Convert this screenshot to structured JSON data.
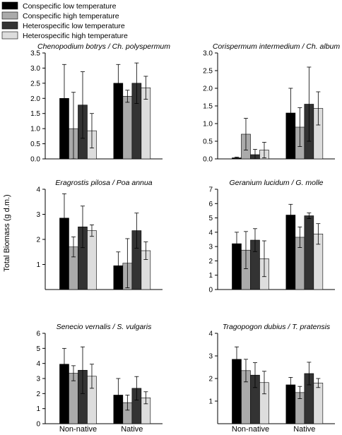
{
  "figure": {
    "ylabel": "Total Biomass (g d.m.)",
    "xcategories": [
      "Non-native",
      "Native"
    ]
  },
  "legend": {
    "placement": "top-left",
    "entries": [
      {
        "label": "Conspecific low temperature",
        "color": "#000000"
      },
      {
        "label": "Conspecific high temperature",
        "color": "#aaaaaa"
      },
      {
        "label": "Heterospecific low temperature",
        "color": "#333333"
      },
      {
        "label": "Heterospecific high temperature",
        "color": "#dddddd"
      }
    ]
  },
  "chart_data": [
    {
      "type": "bar",
      "title": "Chenopodium botrys / Ch. polyspermum",
      "categories": [
        "Non-native",
        "Native"
      ],
      "ylim": [
        0,
        3.5
      ],
      "yticks": [
        0.0,
        0.5,
        1.0,
        1.5,
        2.0,
        2.5,
        3.0,
        3.5
      ],
      "tick_decimals": 1,
      "series": [
        {
          "name": "Conspecific low temperature",
          "values": [
            2.0,
            2.5
          ],
          "errors": [
            1.12,
            0.62
          ]
        },
        {
          "name": "Conspecific high temperature",
          "values": [
            1.0,
            2.07
          ],
          "errors": [
            1.2,
            0.2
          ]
        },
        {
          "name": "Heterospecific low temperature",
          "values": [
            1.78,
            2.5
          ],
          "errors": [
            1.1,
            0.67
          ]
        },
        {
          "name": "Heterospecific high temperature",
          "values": [
            0.93,
            2.35
          ],
          "errors": [
            0.57,
            0.38
          ]
        }
      ]
    },
    {
      "type": "bar",
      "title": "Corispermum intermedium / Ch. album",
      "categories": [
        "Non-native",
        "Native"
      ],
      "ylim": [
        0,
        3.0
      ],
      "yticks": [
        0.0,
        0.5,
        1.0,
        1.5,
        2.0,
        2.5,
        3.0
      ],
      "tick_decimals": 1,
      "series": [
        {
          "name": "Conspecific low temperature",
          "values": [
            0.03,
            1.3
          ],
          "errors": [
            0.02,
            0.7
          ]
        },
        {
          "name": "Conspecific high temperature",
          "values": [
            0.7,
            0.9
          ],
          "errors": [
            0.45,
            0.55
          ]
        },
        {
          "name": "Heterospecific low temperature",
          "values": [
            0.12,
            1.55
          ],
          "errors": [
            0.15,
            1.05
          ]
        },
        {
          "name": "Heterospecific high temperature",
          "values": [
            0.25,
            1.43
          ],
          "errors": [
            0.22,
            0.47
          ]
        }
      ]
    },
    {
      "type": "bar",
      "title": "Eragrostis pilosa / Poa annua",
      "categories": [
        "Non-native",
        "Native"
      ],
      "ylim": [
        0,
        4
      ],
      "yticks": [
        1,
        2,
        3,
        4
      ],
      "tick_decimals": 0,
      "series": [
        {
          "name": "Conspecific low temperature",
          "values": [
            2.85,
            0.95
          ],
          "errors": [
            0.97,
            0.55
          ]
        },
        {
          "name": "Conspecific high temperature",
          "values": [
            1.7,
            1.05
          ],
          "errors": [
            0.4,
            0.98
          ]
        },
        {
          "name": "Heterospecific low temperature",
          "values": [
            2.5,
            2.35
          ],
          "errors": [
            0.83,
            0.7
          ]
        },
        {
          "name": "Heterospecific high temperature",
          "values": [
            2.35,
            1.55
          ],
          "errors": [
            0.23,
            0.35
          ]
        }
      ]
    },
    {
      "type": "bar",
      "title": "Geranium lucidum / G. molle",
      "categories": [
        "Non-native",
        "Native"
      ],
      "ylim": [
        0,
        7
      ],
      "yticks": [
        0,
        1,
        2,
        3,
        4,
        5,
        6,
        7
      ],
      "tick_decimals": 0,
      "series": [
        {
          "name": "Conspecific low temperature",
          "values": [
            3.2,
            5.2
          ],
          "errors": [
            0.8,
            0.75
          ]
        },
        {
          "name": "Conspecific high temperature",
          "values": [
            2.75,
            3.65
          ],
          "errors": [
            1.3,
            0.72
          ]
        },
        {
          "name": "Heterospecific low temperature",
          "values": [
            3.45,
            5.15
          ],
          "errors": [
            0.8,
            0.2
          ]
        },
        {
          "name": "Heterospecific high temperature",
          "values": [
            2.15,
            3.88
          ],
          "errors": [
            1.25,
            0.72
          ]
        }
      ]
    },
    {
      "type": "bar",
      "title": "Senecio vernalis / S. vulgaris",
      "categories": [
        "Non-native",
        "Native"
      ],
      "ylim": [
        0,
        6
      ],
      "yticks": [
        0,
        1,
        2,
        3,
        4,
        5,
        6
      ],
      "tick_decimals": 0,
      "series": [
        {
          "name": "Conspecific low temperature",
          "values": [
            3.95,
            1.9
          ],
          "errors": [
            1.05,
            1.1
          ]
        },
        {
          "name": "Conspecific high temperature",
          "values": [
            3.35,
            1.4
          ],
          "errors": [
            0.5,
            0.5
          ]
        },
        {
          "name": "Heterospecific low temperature",
          "values": [
            3.55,
            2.35
          ],
          "errors": [
            1.55,
            0.78
          ]
        },
        {
          "name": "Heterospecific high temperature",
          "values": [
            3.15,
            1.72
          ],
          "errors": [
            0.8,
            0.4
          ]
        }
      ]
    },
    {
      "type": "bar",
      "title": "Tragopogon dubius / T. pratensis",
      "categories": [
        "Non-native",
        "Native"
      ],
      "ylim": [
        0,
        4
      ],
      "yticks": [
        1,
        2,
        3,
        4
      ],
      "tick_decimals": 0,
      "series": [
        {
          "name": "Conspecific low temperature",
          "values": [
            2.85,
            1.72
          ],
          "errors": [
            0.55,
            0.33
          ]
        },
        {
          "name": "Conspecific high temperature",
          "values": [
            2.35,
            1.38
          ],
          "errors": [
            0.5,
            0.27
          ]
        },
        {
          "name": "Heterospecific low temperature",
          "values": [
            2.15,
            2.22
          ],
          "errors": [
            0.55,
            0.5
          ]
        },
        {
          "name": "Heterospecific high temperature",
          "values": [
            1.82,
            1.8
          ],
          "errors": [
            0.5,
            0.2
          ]
        }
      ]
    }
  ]
}
